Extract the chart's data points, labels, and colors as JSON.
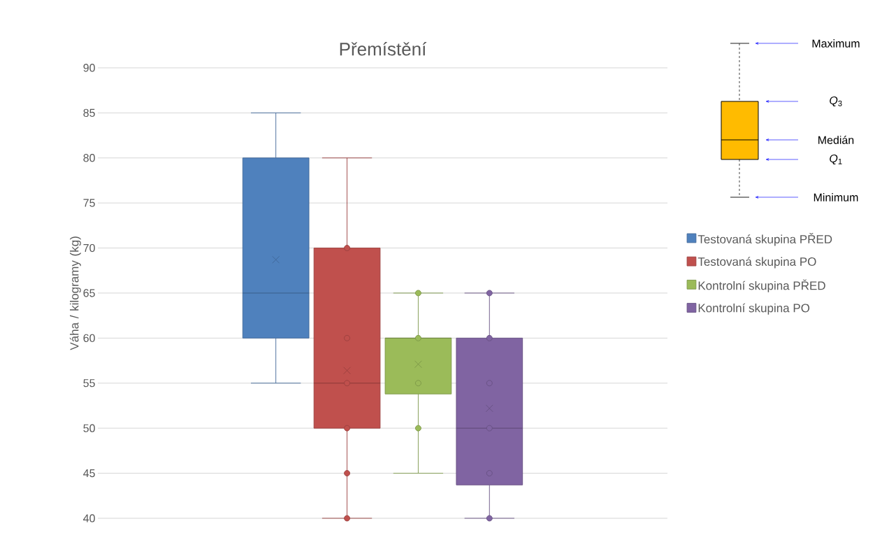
{
  "chart_data": {
    "type": "box",
    "title": "Přemístění",
    "ylabel": "Váha / kilogramy (kg)",
    "categories": [
      null
    ],
    "series": [
      {
        "name": "Testovaná skupina PŘED",
        "color": "#4f81bd",
        "boxes": [
          {
            "low": 55,
            "q1": 60,
            "median": 65,
            "q3": 80,
            "high": 85,
            "mean": 68.7
          }
        ]
      },
      {
        "name": "Testovaná skupina PO",
        "color": "#c0504d",
        "boxes": [
          {
            "low": 40,
            "q1": 50,
            "median": 55,
            "q3": 70,
            "high": 80,
            "mean": 56.4,
            "outliers": [
              40,
              45,
              50,
              55,
              60,
              70
            ]
          }
        ]
      },
      {
        "name": "Kontrolní skupina PŘED",
        "color": "#9bbb59",
        "boxes": [
          {
            "low": 45,
            "q1": 53.8,
            "median": 60,
            "q3": 60,
            "high": 65,
            "mean": 57.1,
            "outliers": [
              50,
              55,
              60,
              65
            ]
          }
        ]
      },
      {
        "name": "Kontrolní skupina PO",
        "color": "#8064a2",
        "boxes": [
          {
            "low": 40,
            "q1": 43.7,
            "median": 50,
            "q3": 60,
            "high": 65,
            "mean": 52.2,
            "outliers": [
              40,
              45,
              50,
              55,
              60,
              65
            ]
          }
        ]
      }
    ],
    "ylim": [
      40,
      90
    ],
    "yticks": [
      40,
      45,
      50,
      55,
      60,
      65,
      70,
      75,
      80,
      85,
      90
    ],
    "grid": "y",
    "legend": "right",
    "annotations": [
      "Maximum",
      "*Q*$_{3}$",
      "Medián",
      "*Q*$_{1}$",
      "Minimum"
    ]
  }
}
